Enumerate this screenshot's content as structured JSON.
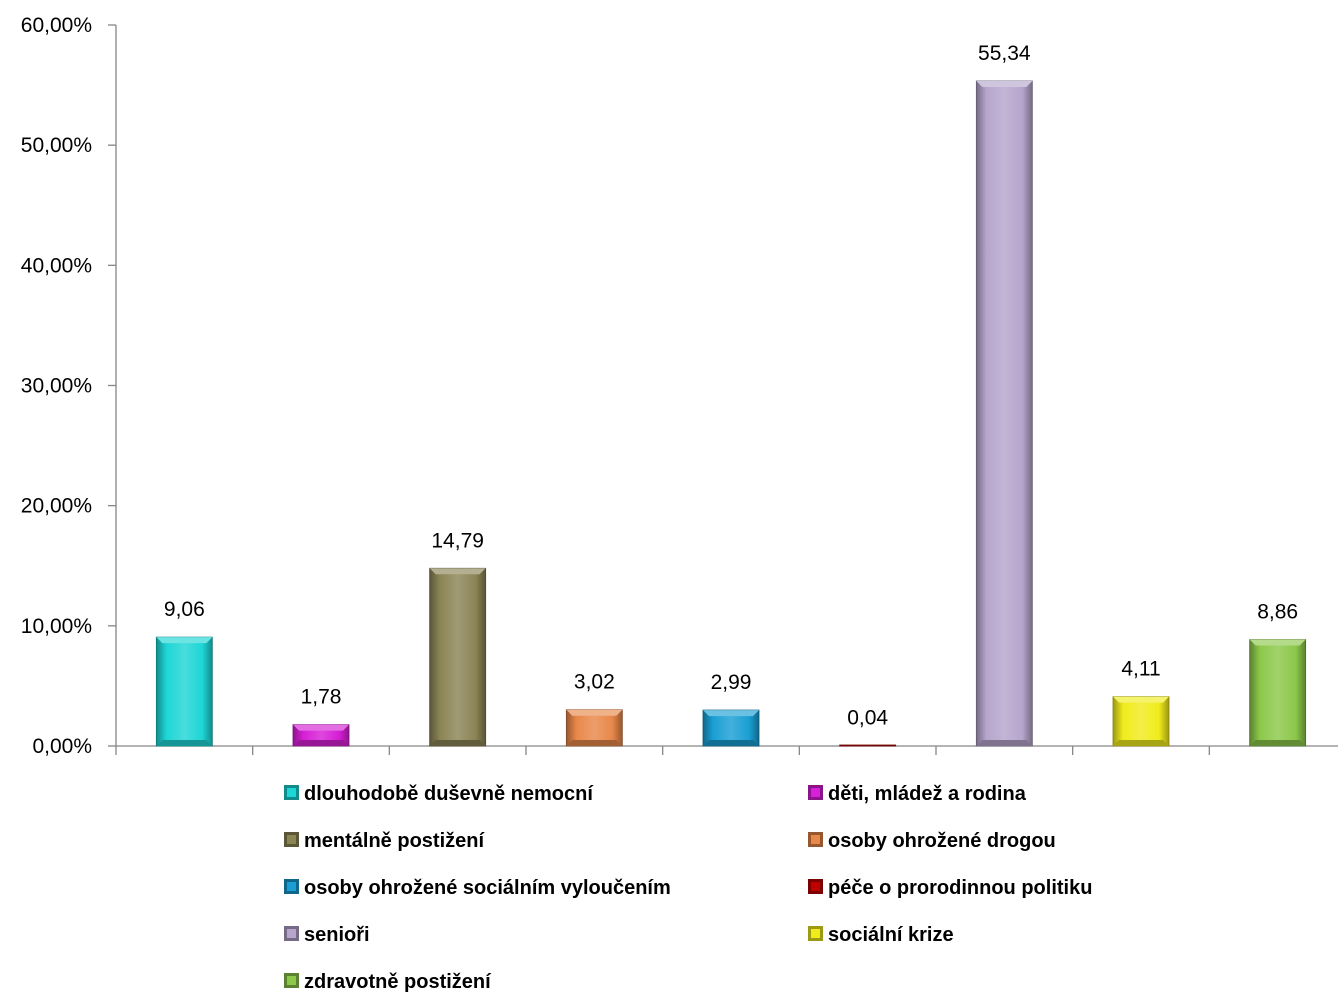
{
  "chart_data": {
    "type": "bar",
    "title": "",
    "xlabel": "",
    "ylabel": "",
    "ylim": [
      0,
      60
    ],
    "y_ticks": [
      0,
      10,
      20,
      30,
      40,
      50,
      60
    ],
    "y_tick_labels": [
      "0,00%",
      "10,00%",
      "20,00%",
      "30,00%",
      "40,00%",
      "50,00%",
      "60,00%"
    ],
    "grid": false,
    "legend_position": "bottom",
    "categories": [
      "dlouhodobě duševně nemocní",
      "děti, mládež a rodina",
      "mentálně postižení",
      "osoby ohrožené drogou",
      "osoby ohrožené sociálním vyloučením",
      "péče o prorodinnou politiku",
      "senioři",
      "sociální krize",
      "zdravotně postižení"
    ],
    "values": [
      9.06,
      1.78,
      14.79,
      3.02,
      2.99,
      0.04,
      55.34,
      4.11,
      8.86
    ],
    "data_labels": [
      "9,06",
      "1,78",
      "14,79",
      "3,02",
      "2,99",
      "0,04",
      "55,34",
      "4,11",
      "8,86"
    ],
    "colors": [
      "#1ED6D6",
      "#D61FD6",
      "#8B8455",
      "#E8884A",
      "#1A9FD4",
      "#C00000",
      "#B6A5CC",
      "#F0EC1C",
      "#8CC84A"
    ]
  }
}
